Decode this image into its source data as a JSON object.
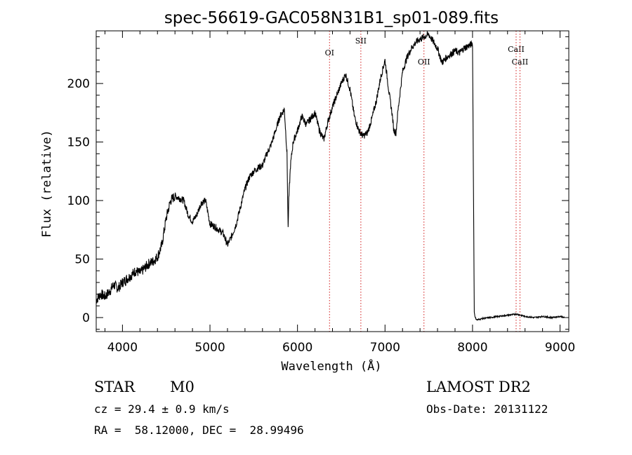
{
  "chart_data": {
    "type": "line",
    "title": "spec-56619-GAC058N31B1_sp01-089.fits",
    "xlabel": "Wavelength (Å)",
    "ylabel": "Flux (relative)",
    "xlim": [
      3700,
      9100
    ],
    "ylim": [
      -12,
      245
    ],
    "x_ticks": [
      4000,
      5000,
      6000,
      7000,
      8000,
      9000
    ],
    "y_ticks": [
      0,
      50,
      100,
      150,
      200
    ],
    "series": [
      {
        "x": [
          3700,
          3750,
          3800,
          3850,
          3900,
          3950,
          4000,
          4050,
          4100,
          4150,
          4200,
          4250,
          4300,
          4350,
          4400,
          4450,
          4500,
          4550,
          4600,
          4650,
          4700,
          4750,
          4800,
          4850,
          4900,
          4950,
          5000,
          5050,
          5100,
          5150,
          5200,
          5250,
          5300,
          5350,
          5400,
          5450,
          5500,
          5550,
          5600,
          5650,
          5700,
          5750,
          5800,
          5850,
          5880,
          5893,
          5900,
          5920,
          5950,
          6000,
          6050,
          6100,
          6150,
          6200,
          6250,
          6300,
          6350,
          6400,
          6450,
          6500,
          6550,
          6600,
          6650,
          6700,
          6750,
          6800,
          6850,
          6900,
          6950,
          7000,
          7050,
          7080,
          7100,
          7125,
          7150,
          7200,
          7250,
          7300,
          7350,
          7400,
          7450,
          7500,
          7550,
          7600,
          7650,
          7700,
          7750,
          7800,
          7850,
          7900,
          7950,
          8000,
          8020,
          8030,
          8050,
          8100,
          8200,
          8300,
          8400,
          8500,
          8600,
          8700,
          8800,
          8900,
          9000,
          9050
        ],
        "y": [
          15,
          20,
          18,
          22,
          28,
          25,
          30,
          33,
          36,
          40,
          38,
          42,
          46,
          48,
          52,
          62,
          85,
          100,
          104,
          102,
          100,
          88,
          82,
          88,
          98,
          100,
          80,
          78,
          75,
          72,
          62,
          70,
          80,
          95,
          110,
          120,
          125,
          128,
          130,
          140,
          148,
          160,
          172,
          178,
          140,
          76,
          100,
          130,
          150,
          160,
          172,
          165,
          170,
          175,
          160,
          152,
          168,
          180,
          190,
          200,
          208,
          195,
          172,
          160,
          155,
          158,
          170,
          185,
          205,
          220,
          190,
          175,
          160,
          158,
          178,
          210,
          222,
          230,
          235,
          238,
          240,
          242,
          236,
          230,
          218,
          222,
          225,
          228,
          226,
          230,
          232,
          234,
          5,
          0,
          -2,
          -1,
          0,
          1,
          2,
          3,
          1,
          0,
          1,
          0,
          1,
          0
        ]
      }
    ],
    "line_markers": [
      {
        "label": "CaII",
        "x": 8498
      },
      {
        "label": "CaII",
        "x": 8542
      },
      {
        "label": "OII",
        "x": 7445
      },
      {
        "label": "SII",
        "x": 6724
      },
      {
        "label": "OI",
        "x": 6366
      }
    ],
    "line_color": "#000000",
    "marker_color": "#d11a1a",
    "grid": false
  },
  "info": {
    "object_class": "STAR",
    "subclass": "M0",
    "survey": "LAMOST DR2",
    "redshift": "cz = 29.4 ± 0.9 km/s",
    "obs_date": "Obs-Date: 20131122",
    "coords": "RA =  58.12000, DEC =  28.99496"
  }
}
